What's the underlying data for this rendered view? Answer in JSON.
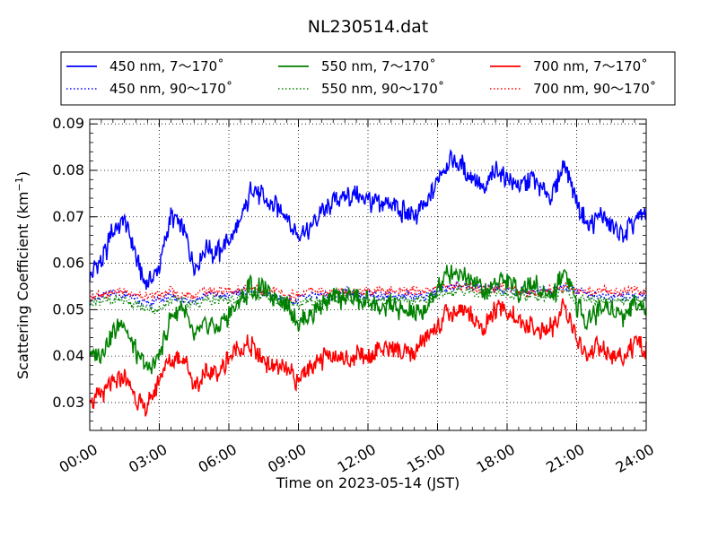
{
  "chart_data": {
    "type": "line",
    "title": "NL230514.dat",
    "xlabel": "Time on 2023-05-14 (JST)",
    "ylabel": "Scattering Coefficient (km",
    "ylabel_sup": "−1",
    "ylabel_tail": ")",
    "xlim": [
      "00:00",
      "24:00"
    ],
    "ylim": [
      0.024,
      0.091
    ],
    "x_ticks": [
      "00:00",
      "03:00",
      "06:00",
      "09:00",
      "12:00",
      "15:00",
      "18:00",
      "21:00",
      "24:00"
    ],
    "y_ticks": [
      "0.03",
      "0.04",
      "0.05",
      "0.06",
      "0.07",
      "0.08",
      "0.09"
    ],
    "y_tick_values": [
      0.03,
      0.04,
      0.05,
      0.06,
      0.07,
      0.08,
      0.09
    ],
    "grid": true,
    "legend_position": "top",
    "x_hours": [
      0,
      0.5,
      1,
      1.5,
      2,
      2.5,
      3,
      3.5,
      4,
      4.5,
      5,
      5.5,
      6,
      6.5,
      7,
      7.5,
      8,
      8.5,
      9,
      9.5,
      10,
      10.5,
      11,
      11.5,
      12,
      12.5,
      13,
      13.5,
      14,
      14.5,
      15,
      15.5,
      16,
      16.5,
      17,
      17.5,
      18,
      18.5,
      19,
      19.5,
      20,
      20.5,
      21,
      21.5,
      22,
      22.5,
      23,
      23.5,
      24
    ],
    "series": [
      {
        "name": "450 nm, 7～170˚",
        "color": "#0000ff",
        "style": "solid",
        "values": [
          0.058,
          0.06,
          0.067,
          0.069,
          0.061,
          0.055,
          0.06,
          0.07,
          0.068,
          0.06,
          0.063,
          0.062,
          0.065,
          0.069,
          0.076,
          0.074,
          0.073,
          0.07,
          0.065,
          0.068,
          0.071,
          0.073,
          0.075,
          0.074,
          0.074,
          0.072,
          0.073,
          0.071,
          0.07,
          0.072,
          0.078,
          0.082,
          0.081,
          0.079,
          0.075,
          0.08,
          0.078,
          0.077,
          0.078,
          0.076,
          0.075,
          0.082,
          0.073,
          0.068,
          0.07,
          0.068,
          0.066,
          0.069,
          0.071
        ]
      },
      {
        "name": "450 nm, 90～170˚",
        "color": "#0000ff",
        "style": "dotted",
        "values": [
          0.052,
          0.053,
          0.054,
          0.053,
          0.052,
          0.051,
          0.052,
          0.053,
          0.052,
          0.052,
          0.053,
          0.053,
          0.053,
          0.054,
          0.054,
          0.054,
          0.053,
          0.052,
          0.052,
          0.053,
          0.053,
          0.053,
          0.054,
          0.053,
          0.053,
          0.053,
          0.053,
          0.053,
          0.053,
          0.053,
          0.054,
          0.055,
          0.055,
          0.055,
          0.054,
          0.055,
          0.054,
          0.054,
          0.054,
          0.054,
          0.054,
          0.055,
          0.054,
          0.053,
          0.053,
          0.053,
          0.053,
          0.053,
          0.053
        ]
      },
      {
        "name": "550 nm, 7～170˚",
        "color": "#008000",
        "style": "solid",
        "values": [
          0.04,
          0.041,
          0.045,
          0.047,
          0.041,
          0.037,
          0.04,
          0.048,
          0.051,
          0.043,
          0.047,
          0.046,
          0.049,
          0.052,
          0.055,
          0.054,
          0.053,
          0.051,
          0.047,
          0.049,
          0.051,
          0.052,
          0.053,
          0.052,
          0.052,
          0.05,
          0.051,
          0.05,
          0.049,
          0.05,
          0.055,
          0.058,
          0.058,
          0.057,
          0.053,
          0.057,
          0.056,
          0.054,
          0.056,
          0.054,
          0.053,
          0.059,
          0.051,
          0.048,
          0.05,
          0.05,
          0.049,
          0.051,
          0.051
        ]
      },
      {
        "name": "550 nm, 90～170˚",
        "color": "#008000",
        "style": "dotted",
        "values": [
          0.051,
          0.052,
          0.052,
          0.052,
          0.051,
          0.05,
          0.05,
          0.052,
          0.052,
          0.051,
          0.052,
          0.052,
          0.052,
          0.052,
          0.053,
          0.053,
          0.052,
          0.052,
          0.051,
          0.052,
          0.052,
          0.052,
          0.052,
          0.052,
          0.052,
          0.052,
          0.052,
          0.052,
          0.052,
          0.052,
          0.053,
          0.054,
          0.054,
          0.054,
          0.053,
          0.054,
          0.053,
          0.053,
          0.053,
          0.053,
          0.053,
          0.054,
          0.052,
          0.052,
          0.052,
          0.052,
          0.052,
          0.052,
          0.052
        ]
      },
      {
        "name": "700 nm, 7～170˚",
        "color": "#ff0000",
        "style": "solid",
        "values": [
          0.031,
          0.031,
          0.034,
          0.035,
          0.031,
          0.029,
          0.035,
          0.039,
          0.04,
          0.033,
          0.036,
          0.037,
          0.039,
          0.042,
          0.042,
          0.039,
          0.038,
          0.036,
          0.035,
          0.038,
          0.039,
          0.04,
          0.039,
          0.04,
          0.04,
          0.042,
          0.041,
          0.041,
          0.041,
          0.043,
          0.047,
          0.049,
          0.05,
          0.048,
          0.046,
          0.05,
          0.05,
          0.047,
          0.047,
          0.045,
          0.046,
          0.051,
          0.043,
          0.04,
          0.042,
          0.039,
          0.04,
          0.042,
          0.042
        ]
      },
      {
        "name": "700 nm, 90～170˚",
        "color": "#ff0000",
        "style": "dotted",
        "values": [
          0.053,
          0.053,
          0.054,
          0.054,
          0.053,
          0.053,
          0.053,
          0.054,
          0.053,
          0.053,
          0.054,
          0.054,
          0.054,
          0.054,
          0.055,
          0.054,
          0.054,
          0.053,
          0.053,
          0.054,
          0.054,
          0.054,
          0.054,
          0.054,
          0.054,
          0.054,
          0.054,
          0.054,
          0.054,
          0.054,
          0.055,
          0.055,
          0.055,
          0.055,
          0.054,
          0.055,
          0.055,
          0.054,
          0.054,
          0.054,
          0.054,
          0.055,
          0.054,
          0.054,
          0.054,
          0.054,
          0.054,
          0.054,
          0.054
        ]
      }
    ]
  }
}
